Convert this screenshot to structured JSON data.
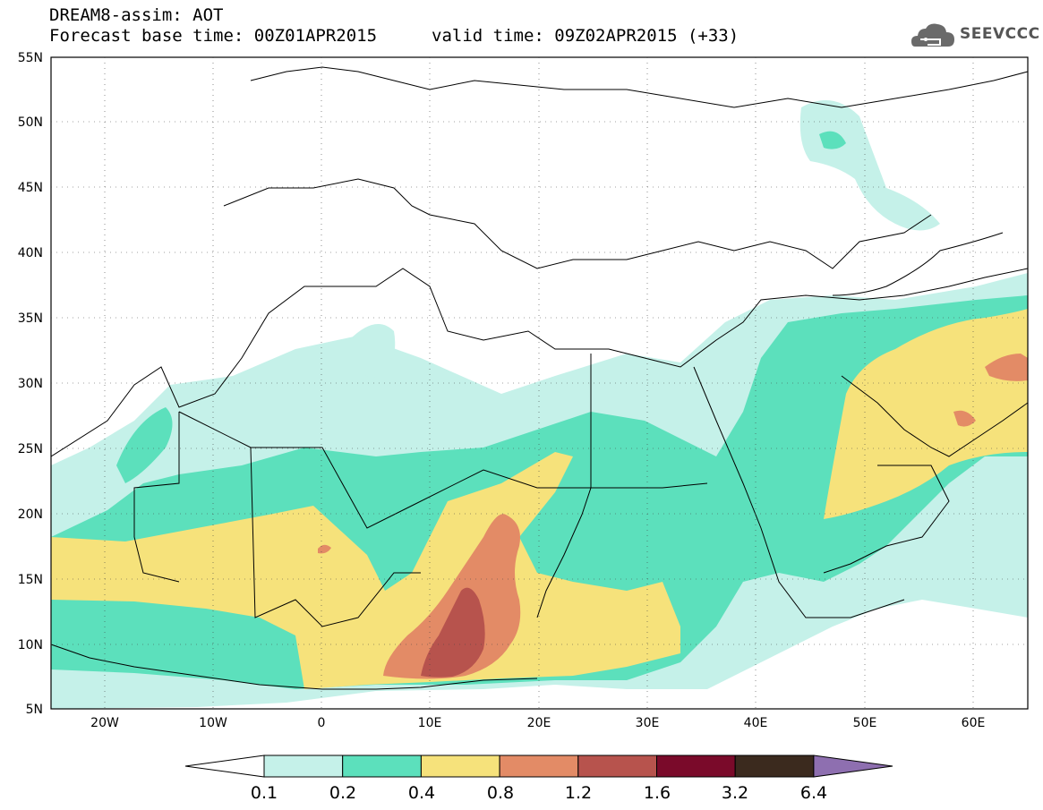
{
  "header": {
    "title": "DREAM8-assim: AOT",
    "base_time": "Forecast base time: 00Z01APR2015",
    "valid_time": "valid time: 09Z02APR2015 (+33)",
    "logo_text": "SEEVCCC"
  },
  "map": {
    "lat_labels": [
      "55N",
      "50N",
      "45N",
      "40N",
      "35N",
      "30N",
      "25N",
      "20N",
      "15N",
      "10N",
      "5N"
    ],
    "lon_labels": [
      "20W",
      "10W",
      "0",
      "10E",
      "20E",
      "30E",
      "40E",
      "50E",
      "60E"
    ],
    "extent": {
      "lon_min": -25,
      "lon_max": 65,
      "lat_min": 5,
      "lat_max": 55
    }
  },
  "colorbar": {
    "levels": [
      "0.1",
      "0.2",
      "0.4",
      "0.8",
      "1.2",
      "1.6",
      "3.2",
      "6.4"
    ],
    "colors": [
      "#ffffff",
      "#c5f1e9",
      "#5ce0bc",
      "#f6e27b",
      "#e38b66",
      "#b7534d",
      "#7a0a2a",
      "#3b2a1e",
      "#8e6fb0"
    ]
  }
}
